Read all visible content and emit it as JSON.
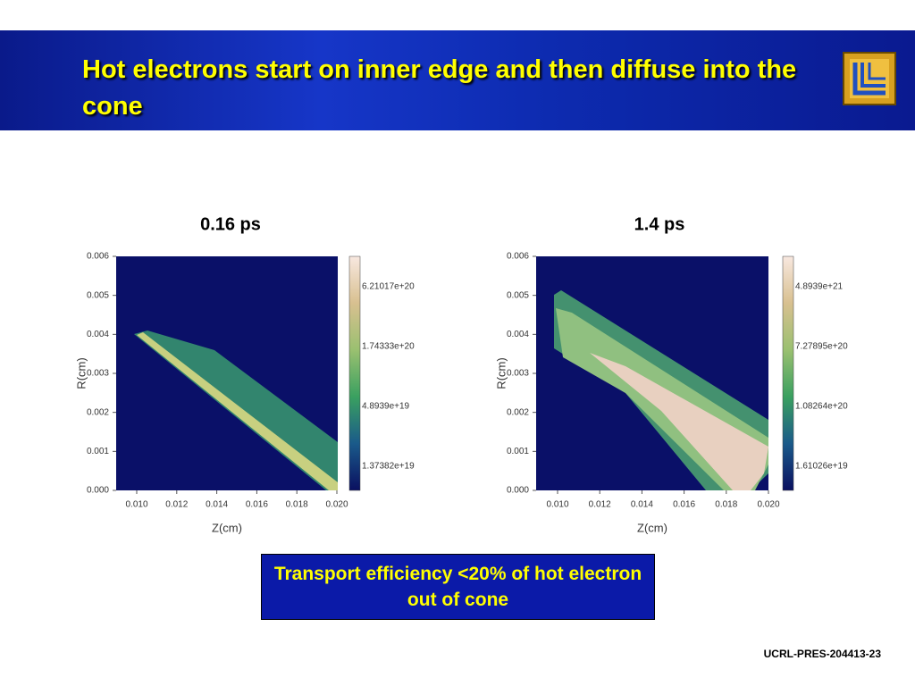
{
  "header": {
    "title": "Hot electrons start on inner edge and then diffuse into the cone"
  },
  "panels": [
    {
      "label": "0.16 ps",
      "x_axis_label": "Z(cm)",
      "y_axis_label": "R(cm)",
      "xticks": [
        "0.010",
        "0.012",
        "0.014",
        "0.016",
        "0.018",
        "0.020"
      ],
      "yticks": [
        "0.000",
        "0.001",
        "0.002",
        "0.003",
        "0.004",
        "0.005",
        "0.006"
      ],
      "colorbar_ticks": [
        "1.37382e+19",
        "4.8939e+19",
        "1.74333e+20",
        "6.21017e+20"
      ]
    },
    {
      "label": "1.4 ps",
      "x_axis_label": "Z(cm)",
      "y_axis_label": "R(cm)",
      "xticks": [
        "0.010",
        "0.012",
        "0.014",
        "0.016",
        "0.018",
        "0.020"
      ],
      "yticks": [
        "0.000",
        "0.001",
        "0.002",
        "0.003",
        "0.004",
        "0.005",
        "0.006"
      ],
      "colorbar_ticks": [
        "1.61026e+19",
        "1.08264e+20",
        "7.27895e+20",
        "4.8939e+21"
      ]
    }
  ],
  "callout": "Transport efficiency <20% of hot electron out of cone",
  "footer": "UCRL-PRES-204413-23"
}
